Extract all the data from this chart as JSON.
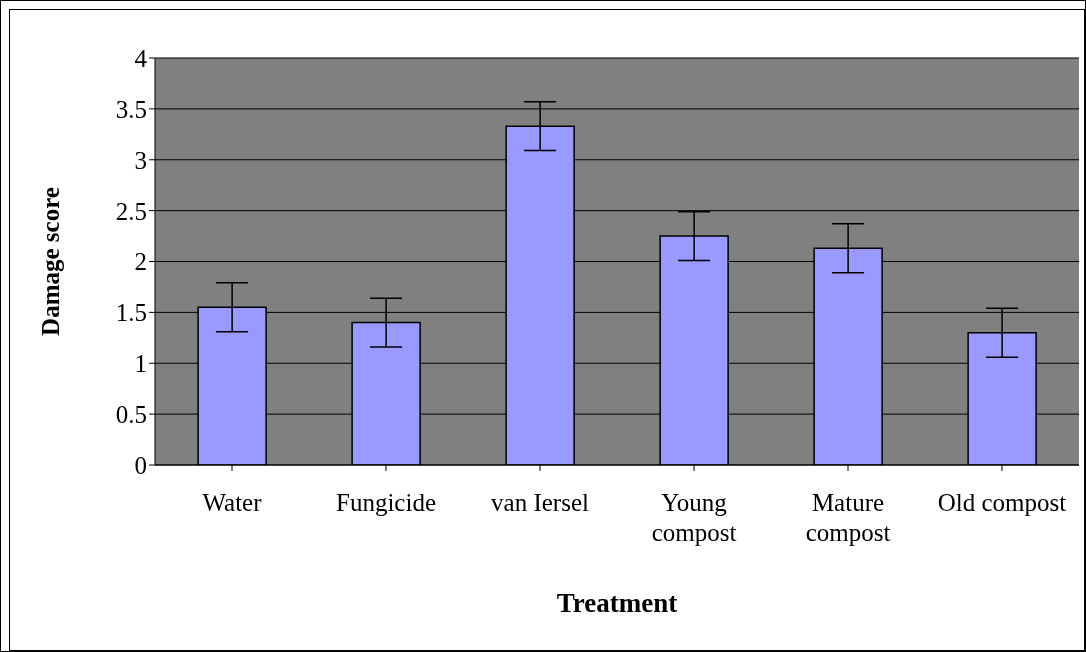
{
  "chart_data": {
    "type": "bar",
    "xlabel": "Treatment",
    "ylabel": "Damage score",
    "categories": [
      "Water",
      "Fungicide",
      "van Iersel",
      "Young compost",
      "Mature compost",
      "Old compost"
    ],
    "values": [
      1.55,
      1.4,
      3.33,
      2.25,
      2.13,
      1.3
    ],
    "errors": [
      0.24,
      0.24,
      0.24,
      0.24,
      0.24,
      0.24
    ],
    "color": "#9999ff",
    "ylim": [
      0,
      4
    ],
    "yticks": [
      0,
      0.5,
      1,
      1.5,
      2,
      2.5,
      3,
      3.5,
      4
    ],
    "grid": "y",
    "legend": false
  }
}
